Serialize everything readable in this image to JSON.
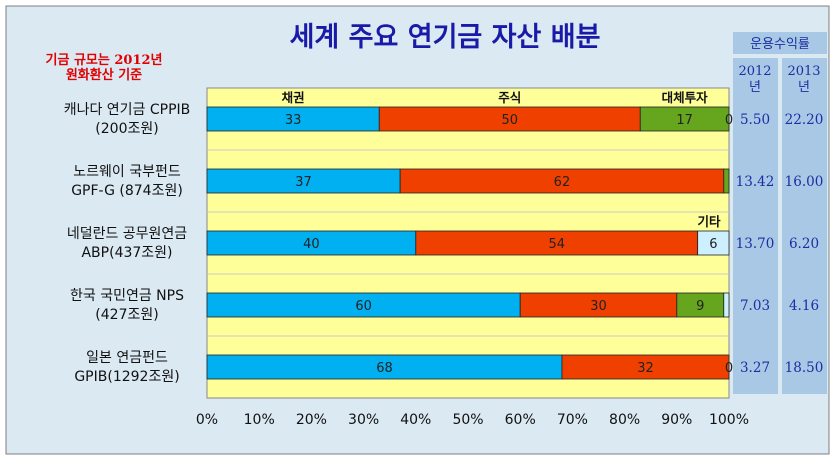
{
  "chart_data": {
    "type": "bar",
    "stacked": true,
    "orientation": "horizontal",
    "title": "세계 주요 연기금 자산 배분",
    "note": [
      "기금 규모는 2012년",
      "원화환산 기준"
    ],
    "categories": [
      [
        "캐나다 연기금 CPPIB",
        "(200조원)"
      ],
      [
        "노르웨이 국부펀드",
        "GPF-G (874조원)"
      ],
      [
        "네덜란드 공무원연금",
        "ABP(437조원)"
      ],
      [
        "한국 국민연금 NPS",
        "(427조원)"
      ],
      [
        "일본 연금펀드",
        "GPIB(1292조원)"
      ]
    ],
    "series": [
      {
        "name": "채권",
        "values": [
          33,
          37,
          40,
          60,
          68
        ],
        "color": "#00b0f0"
      },
      {
        "name": "주식",
        "values": [
          50,
          62,
          54,
          30,
          32
        ],
        "color": "#f04000"
      },
      {
        "name": "대체투자",
        "values": [
          17,
          1,
          0,
          9,
          0
        ],
        "color": "#66a61e"
      },
      {
        "name": "기타",
        "values": [
          0,
          0,
          6,
          1,
          0
        ],
        "color": "#ccf0ff"
      }
    ],
    "bar_labels": [
      [
        "33",
        "50",
        "17",
        "0"
      ],
      [
        "37",
        "62",
        "",
        ""
      ],
      [
        "40",
        "54",
        "",
        "6"
      ],
      [
        "60",
        "30",
        "9",
        ""
      ],
      [
        "68",
        "32",
        "",
        "0"
      ]
    ],
    "segment_labels": [
      {
        "text": "채권",
        "row": 0,
        "series": 0
      },
      {
        "text": "주식",
        "row": 0,
        "series": 1
      },
      {
        "text": "대체투자",
        "row": 0,
        "series": 2
      },
      {
        "text": "기타",
        "row": 2,
        "series": 3
      }
    ],
    "xlim": [
      0,
      100
    ],
    "xticks": [
      "0%",
      "10%",
      "20%",
      "30%",
      "40%",
      "50%",
      "60%",
      "70%",
      "80%",
      "90%",
      "100%"
    ],
    "returns_table": {
      "header": "운용수익률",
      "years": [
        [
          "2012",
          "년"
        ],
        [
          "2013",
          "년"
        ]
      ],
      "rows": [
        [
          "5.50",
          "22.20"
        ],
        [
          "13.42",
          "16.00"
        ],
        [
          "13.70",
          "6.20"
        ],
        [
          "7.03",
          "4.16"
        ],
        [
          "3.27",
          "18.50"
        ]
      ]
    },
    "colors": {
      "plot_bg": "#ffff99",
      "panel_bg": "#dbe9f3",
      "title": "#1a1aa8",
      "note": "#e00000",
      "table_bg": "#a8c8e6",
      "table_text": "#1a2fa0"
    }
  }
}
